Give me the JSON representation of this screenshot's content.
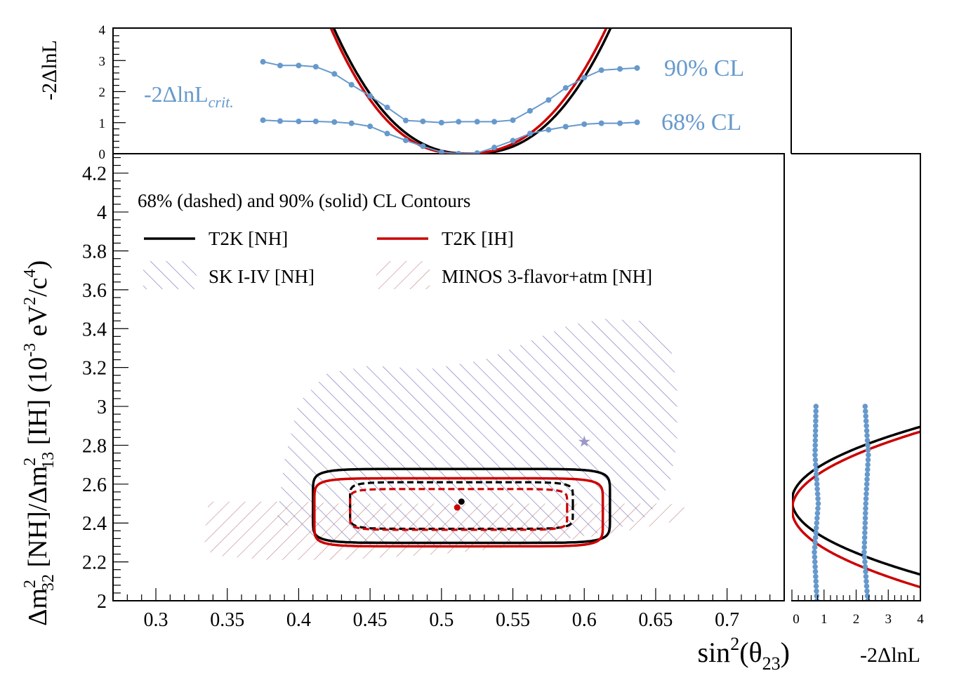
{
  "chart_data": {
    "type": "line",
    "colors": {
      "nh": "#000000",
      "ih": "#cc0000",
      "critical": "#6699cc",
      "sk": "#7a78b8",
      "minos": "#c88a8a"
    },
    "main": {
      "xlabel_base": "sin",
      "xlabel_sup": "2",
      "xlabel_open": "(θ",
      "xlabel_sub": "23",
      "xlabel_close": ")",
      "ylabel": {
        "p1": "Δm",
        "p1sup": "2",
        "p1sub": "32",
        "p2": " [NH]/Δm",
        "p2sup": "2",
        "p2sub": "13",
        "p3": " [IH] (10",
        "p3sup": "-3",
        "p4": " eV",
        "p4sup": "2",
        "p5": "/c",
        "p5sup": "4",
        "p6": ")"
      },
      "xlim": [
        0.27,
        0.74
      ],
      "ylim": [
        2.0,
        4.3
      ],
      "xticks": [
        "0.3",
        "0.35",
        "0.4",
        "0.45",
        "0.5",
        "0.55",
        "0.6",
        "0.65",
        "0.7"
      ],
      "yticks": [
        "2",
        "2.2",
        "2.4",
        "2.6",
        "2.8",
        "3",
        "3.2",
        "3.4",
        "3.6",
        "3.8",
        "4",
        "4.2"
      ],
      "legend": {
        "title": "68% (dashed) and 90% (solid) CL Contours",
        "nh": "T2K [NH]",
        "ih": "T2K [IH]",
        "sk": "SK I-IV [NH]",
        "minos": "MINOS 3-flavor+atm [NH]"
      },
      "best_fit": {
        "nh": [
          0.514,
          2.51
        ],
        "ih": [
          0.511,
          2.48
        ],
        "sk": [
          0.6,
          2.82
        ]
      },
      "contours": {
        "nh90": {
          "cx": 0.514,
          "cy": 2.488,
          "ax": 0.104,
          "ay": 0.19,
          "n": 8
        },
        "ih90": {
          "cx": 0.512,
          "cy": 2.455,
          "ax": 0.101,
          "ay": 0.175,
          "n": 8
        },
        "nh68": {
          "cx": 0.514,
          "cy": 2.49,
          "ax": 0.078,
          "ay": 0.12,
          "n": 8
        },
        "ih68": {
          "cx": 0.512,
          "cy": 2.47,
          "ax": 0.076,
          "ay": 0.105,
          "n": 8
        }
      },
      "sk_region": [
        [
          0.385,
          2.42
        ],
        [
          0.39,
          2.72
        ],
        [
          0.4,
          3.02
        ],
        [
          0.42,
          3.17
        ],
        [
          0.45,
          3.21
        ],
        [
          0.49,
          3.19
        ],
        [
          0.53,
          3.24
        ],
        [
          0.56,
          3.33
        ],
        [
          0.59,
          3.42
        ],
        [
          0.615,
          3.45
        ],
        [
          0.64,
          3.44
        ],
        [
          0.66,
          3.33
        ],
        [
          0.665,
          3.1
        ],
        [
          0.665,
          2.82
        ],
        [
          0.66,
          2.6
        ],
        [
          0.645,
          2.44
        ],
        [
          0.62,
          2.36
        ],
        [
          0.58,
          2.31
        ],
        [
          0.5,
          2.28
        ],
        [
          0.44,
          2.29
        ],
        [
          0.405,
          2.33
        ]
      ],
      "minos_region": [
        [
          0.334,
          2.26
        ],
        [
          0.335,
          2.41
        ],
        [
          0.337,
          2.51
        ],
        [
          0.4,
          2.51
        ],
        [
          0.43,
          2.5
        ],
        [
          0.6,
          2.5
        ],
        [
          0.66,
          2.5
        ],
        [
          0.675,
          2.47
        ],
        [
          0.665,
          2.41
        ],
        [
          0.63,
          2.36
        ],
        [
          0.58,
          2.3
        ],
        [
          0.5,
          2.24
        ],
        [
          0.43,
          2.21
        ],
        [
          0.38,
          2.21
        ],
        [
          0.345,
          2.23
        ]
      ]
    },
    "top": {
      "ylabel": "-2ΔlnL",
      "ylim": [
        0,
        4
      ],
      "yticks": [
        "0",
        "1",
        "2",
        "3",
        "4"
      ],
      "crit_label": "-2ΔlnL",
      "crit_sub": "crit.",
      "cl90": "90% CL",
      "cl68": "68% CL",
      "x_points": [
        0.375,
        0.387,
        0.4,
        0.412,
        0.425,
        0.437,
        0.45,
        0.462,
        0.475,
        0.487,
        0.5,
        0.512,
        0.525,
        0.537,
        0.55,
        0.562,
        0.575,
        0.587,
        0.6,
        0.612,
        0.625,
        0.637
      ],
      "crit90": [
        2.96,
        2.84,
        2.84,
        2.8,
        2.57,
        2.22,
        1.86,
        1.49,
        1.07,
        1.04,
        1.0,
        1.03,
        1.03,
        1.03,
        1.08,
        1.38,
        1.73,
        2.12,
        2.45,
        2.69,
        2.73,
        2.76
      ],
      "crit68": [
        1.08,
        1.05,
        1.04,
        1.04,
        1.02,
        0.98,
        0.88,
        0.65,
        0.43,
        0.24,
        0.05,
        0.0,
        0.02,
        0.2,
        0.42,
        0.65,
        0.77,
        0.87,
        0.95,
        0.98,
        0.98,
        1.01
      ],
      "nh_curve": {
        "center": 0.52,
        "left_x4": 0.425,
        "right_x4": 0.618,
        "n": 2.4
      },
      "ih_curve": {
        "center": 0.515,
        "left_x4": 0.423,
        "right_x4": 0.615,
        "n": 2.4
      }
    },
    "side": {
      "xlabel": "-2ΔlnL",
      "xlim": [
        0,
        4
      ],
      "xticks": [
        "0",
        "1",
        "2",
        "3",
        "4"
      ],
      "nh_min": 2.515,
      "ih_min": 2.47,
      "nh_curv": 0.19,
      "ih_curv": 0.2,
      "crit68_x": [
        0.78,
        0.7,
        0.82,
        0.72,
        0.75
      ],
      "crit90_x": [
        2.36,
        2.25,
        2.3,
        2.38,
        2.28
      ],
      "crit_y": [
        2.0,
        2.25,
        2.5,
        2.75,
        3.0
      ]
    }
  }
}
